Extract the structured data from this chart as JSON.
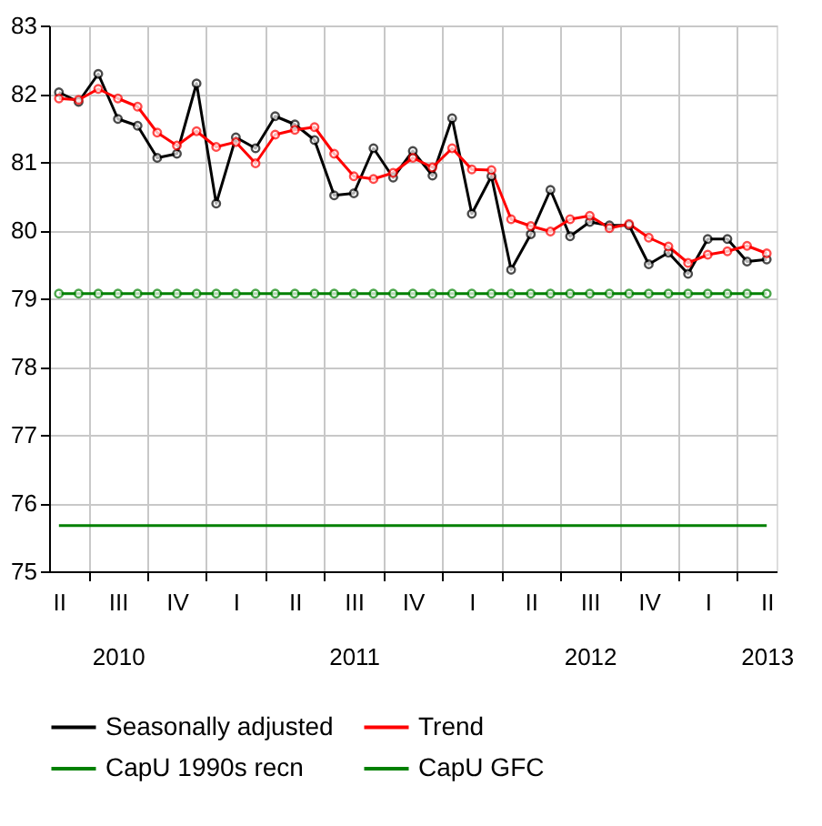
{
  "chart_data": {
    "type": "line",
    "categories": [
      "II",
      null,
      null,
      "III\n2010",
      null,
      null,
      "IV",
      null,
      null,
      "I",
      null,
      null,
      "II",
      null,
      null,
      "III\n2011",
      null,
      null,
      "IV",
      null,
      null,
      "I",
      null,
      null,
      "II",
      null,
      null,
      "III\n2012",
      null,
      null,
      "IV",
      null,
      null,
      "I",
      null,
      null,
      "II\n2013"
    ],
    "series": [
      {
        "name": "Seasonally adjusted",
        "color": "#000000",
        "marker": "circle",
        "values": [
          82.02,
          81.88,
          82.29,
          81.63,
          81.53,
          81.06,
          81.12,
          82.15,
          80.39,
          81.36,
          81.2,
          81.67,
          81.55,
          81.32,
          80.51,
          80.54,
          81.2,
          80.77,
          81.16,
          80.8,
          81.64,
          80.24,
          80.79,
          79.42,
          79.94,
          80.59,
          79.91,
          80.12,
          80.07,
          80.07,
          79.5,
          79.67,
          79.36,
          79.87,
          79.87,
          79.54,
          79.57
        ]
      },
      {
        "name": "Trend",
        "color": "#ff0000",
        "marker": "circle",
        "values": [
          81.93,
          81.91,
          82.07,
          81.93,
          81.81,
          81.43,
          81.24,
          81.45,
          81.22,
          81.29,
          80.98,
          81.4,
          81.47,
          81.51,
          81.12,
          80.79,
          80.75,
          80.84,
          81.06,
          80.92,
          81.2,
          80.89,
          80.88,
          80.16,
          80.06,
          79.98,
          80.16,
          80.21,
          80.03,
          80.09,
          79.89,
          79.76,
          79.52,
          79.64,
          79.69,
          79.77,
          79.66
        ]
      },
      {
        "name": "CapU 1990s recn",
        "color": "#008000",
        "marker": "none",
        "values": [
          75.67,
          75.67,
          75.67,
          75.67,
          75.67,
          75.67,
          75.67,
          75.67,
          75.67,
          75.67,
          75.67,
          75.67,
          75.67,
          75.67,
          75.67,
          75.67,
          75.67,
          75.67,
          75.67,
          75.67,
          75.67,
          75.67,
          75.67,
          75.67,
          75.67,
          75.67,
          75.67,
          75.67,
          75.67,
          75.67,
          75.67,
          75.67,
          75.67,
          75.67,
          75.67,
          75.67,
          75.67
        ]
      },
      {
        "name": "CapU GFC",
        "color": "#008000",
        "marker": "circle",
        "values": [
          79.07,
          79.07,
          79.07,
          79.07,
          79.07,
          79.07,
          79.07,
          79.07,
          79.07,
          79.07,
          79.07,
          79.07,
          79.07,
          79.07,
          79.07,
          79.07,
          79.07,
          79.07,
          79.07,
          79.07,
          79.07,
          79.07,
          79.07,
          79.07,
          79.07,
          79.07,
          79.07,
          79.07,
          79.07,
          79.07,
          79.07,
          79.07,
          79.07,
          79.07,
          79.07,
          79.07,
          79.07
        ]
      }
    ],
    "ylim": [
      75,
      83
    ],
    "yticks": [
      75,
      76,
      77,
      78,
      79,
      80,
      81,
      82,
      83
    ],
    "grid": true,
    "legend": "bottom",
    "line_style": "solid"
  }
}
